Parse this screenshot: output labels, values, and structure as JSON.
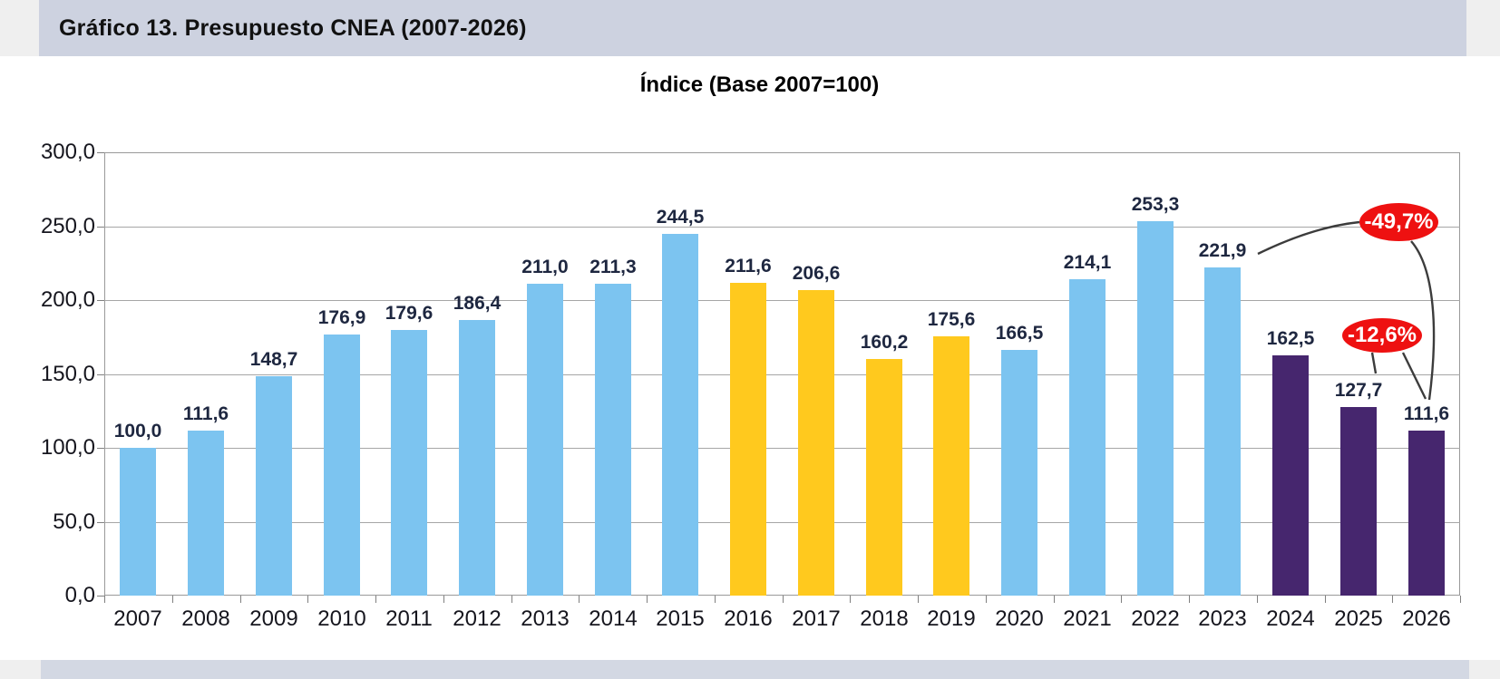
{
  "page": {
    "header_title": "Gráfico 13. Presupuesto CNEA (2007-2026)",
    "chart_title": "Índice (Base 2007=100)"
  },
  "colors": {
    "band_top": "#cdd2e0",
    "band_bottom": "#d3d8e3",
    "edge_strip": "#efefef",
    "bar_blue": "#7cc4f0",
    "bar_yellow": "#ffc91e",
    "bar_purple": "#46266e",
    "grid": "#a6a6a6",
    "frame": "#999999",
    "bar_label": "#1e2740",
    "axis_label": "#16161e",
    "annotation_red": "#ee1111",
    "connector": "#3c3c3c"
  },
  "chart_data": {
    "type": "bar",
    "title": "Índice (Base 2007=100)",
    "categories": [
      "2007",
      "2008",
      "2009",
      "2010",
      "2011",
      "2012",
      "2013",
      "2014",
      "2015",
      "2016",
      "2017",
      "2018",
      "2019",
      "2020",
      "2021",
      "2022",
      "2023",
      "2024",
      "2025",
      "2026"
    ],
    "values": [
      100.0,
      111.6,
      148.7,
      176.9,
      179.6,
      186.4,
      211.0,
      211.3,
      244.5,
      211.6,
      206.6,
      160.2,
      175.6,
      166.5,
      214.1,
      253.3,
      221.9,
      162.5,
      127.7,
      111.6
    ],
    "value_labels": [
      "100,0",
      "111,6",
      "148,7",
      "176,9",
      "179,6",
      "186,4",
      "211,0",
      "211,3",
      "244,5",
      "211,6",
      "206,6",
      "160,2",
      "175,6",
      "166,5",
      "214,1",
      "253,3",
      "221,9",
      "162,5",
      "127,7",
      "111,6"
    ],
    "bar_colors": [
      "blue",
      "blue",
      "blue",
      "blue",
      "blue",
      "blue",
      "blue",
      "blue",
      "blue",
      "yellow",
      "yellow",
      "yellow",
      "yellow",
      "blue",
      "blue",
      "blue",
      "blue",
      "purple",
      "purple",
      "purple"
    ],
    "xlabel": "",
    "ylabel": "",
    "ylim": [
      0,
      300
    ],
    "ytick_step": 50,
    "ytick_labels": [
      "0,0",
      "50,0",
      "100,0",
      "150,0",
      "200,0",
      "250,0",
      "300,0"
    ],
    "grid": true,
    "legend": "none",
    "annotations": [
      {
        "label": "-49,7%",
        "connects": [
          "2023",
          "2026"
        ]
      },
      {
        "label": "-12,6%",
        "connects": [
          "2025",
          "2026"
        ]
      }
    ]
  }
}
